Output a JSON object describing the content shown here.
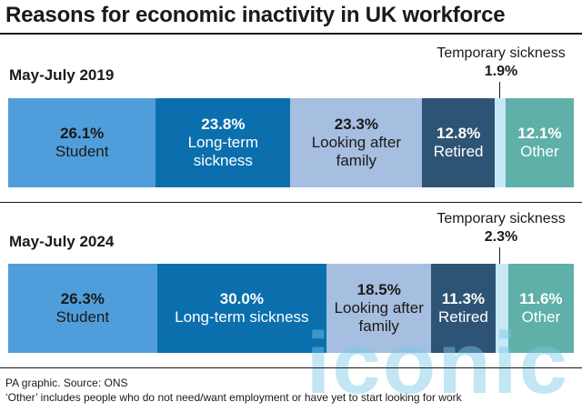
{
  "title": "Reasons for economic inactivity in UK workforce",
  "chart_data": {
    "type": "bar",
    "orientation": "horizontal-stacked-100",
    "categories": [
      "Student",
      "Long-term sickness",
      "Looking after family",
      "Retired",
      "Temporary sickness",
      "Other"
    ],
    "series": [
      {
        "name": "May-July 2019",
        "values": [
          26.1,
          23.8,
          23.3,
          12.8,
          1.9,
          12.1
        ]
      },
      {
        "name": "May-July 2024",
        "values": [
          26.3,
          30.0,
          18.5,
          11.3,
          2.3,
          11.6
        ]
      }
    ],
    "unit": "%"
  },
  "bars": [
    {
      "period": "May-July 2019",
      "segments": [
        {
          "value": 26.1,
          "value_label": "26.1%",
          "label": "Student",
          "color": "#4f9edb",
          "text_color": "#1a1a1a"
        },
        {
          "value": 23.8,
          "value_label": "23.8%",
          "label": "Long-term sickness",
          "color": "#0b6fae",
          "text_color": "#ffffff"
        },
        {
          "value": 23.3,
          "value_label": "23.3%",
          "label": "Looking after family",
          "color": "#a6bedf",
          "text_color": "#1a1a1a"
        },
        {
          "value": 12.8,
          "value_label": "12.8%",
          "label": "Retired",
          "color": "#2e5475",
          "text_color": "#ffffff"
        },
        {
          "value": 1.9,
          "value_label": "",
          "label": "",
          "color": "#c7e8f6",
          "text_color": "#1a1a1a"
        },
        {
          "value": 12.1,
          "value_label": "12.1%",
          "label": "Other",
          "color": "#5eb0a8",
          "text_color": "#ffffff"
        }
      ],
      "callout": {
        "label": "Temporary sickness",
        "value_label": "1.9%"
      }
    },
    {
      "period": "May-July 2024",
      "segments": [
        {
          "value": 26.3,
          "value_label": "26.3%",
          "label": "Student",
          "color": "#4f9edb",
          "text_color": "#1a1a1a"
        },
        {
          "value": 30.0,
          "value_label": "30.0%",
          "label": "Long-term sickness",
          "color": "#0b6fae",
          "text_color": "#ffffff"
        },
        {
          "value": 18.5,
          "value_label": "18.5%",
          "label": "Looking after family",
          "color": "#a6bedf",
          "text_color": "#1a1a1a"
        },
        {
          "value": 11.3,
          "value_label": "11.3%",
          "label": "Retired",
          "color": "#2e5475",
          "text_color": "#ffffff"
        },
        {
          "value": 2.3,
          "value_label": "",
          "label": "",
          "color": "#c7e8f6",
          "text_color": "#1a1a1a"
        },
        {
          "value": 11.6,
          "value_label": "11.6%",
          "label": "Other",
          "color": "#5eb0a8",
          "text_color": "#ffffff"
        }
      ],
      "callout": {
        "label": "Temporary sickness",
        "value_label": "2.3%"
      }
    }
  ],
  "footer": {
    "source": "PA graphic. Source: ONS",
    "note": "‘Other’ includes people who do not need/want employment or have yet to start looking for work"
  },
  "watermark": "iconic"
}
